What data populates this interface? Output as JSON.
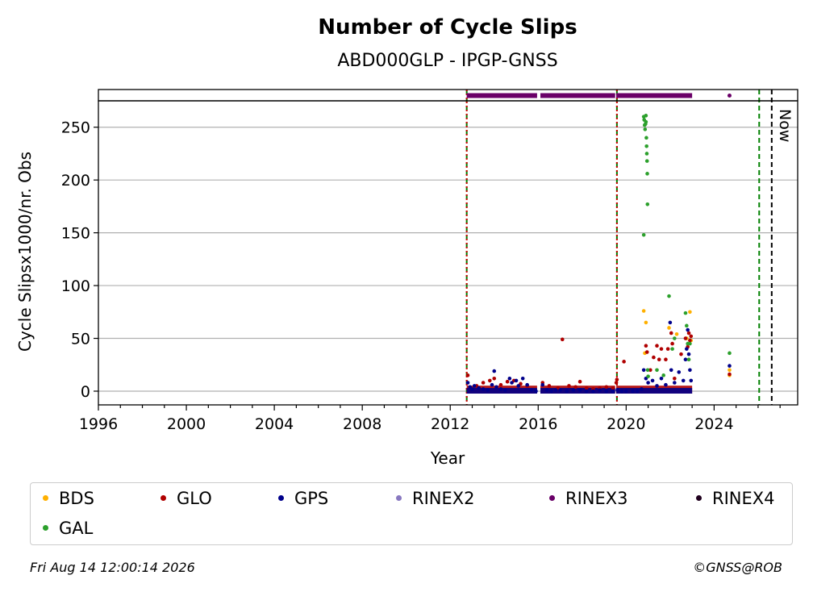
{
  "chart_data": {
    "type": "scatter",
    "title": "Number of Cycle Slips",
    "subtitle": "ABD000GLP - IPGP-GNSS",
    "xlabel": "Year",
    "ylabel": "Cycle Slipsx1000/nr. Obs",
    "xlim": [
      1996,
      2027.8
    ],
    "ylim": [
      -13,
      275
    ],
    "x_ticks": [
      1996,
      2000,
      2004,
      2008,
      2012,
      2016,
      2020,
      2024
    ],
    "y_ticks": [
      0,
      50,
      100,
      150,
      200,
      250
    ],
    "grid": "y",
    "now_label": "Now",
    "vlines": [
      {
        "x": 2012.75,
        "color": "#008000",
        "style": "dashed"
      },
      {
        "x": 2012.75,
        "color": "#cc0000",
        "style": "dotted"
      },
      {
        "x": 2019.58,
        "color": "#008000",
        "style": "dashed"
      },
      {
        "x": 2019.58,
        "color": "#cc0000",
        "style": "dotted"
      },
      {
        "x": 2026.05,
        "color": "#008000",
        "style": "dashed"
      },
      {
        "x": 2026.62,
        "color": "#000000",
        "style": "dashed"
      }
    ],
    "rinex3_bar": {
      "segments": [
        [
          2012.75,
          2015.95
        ],
        [
          2016.1,
          2019.5
        ],
        [
          2019.55,
          2023.0
        ]
      ],
      "points": [
        2024.7
      ]
    },
    "series": [
      {
        "name": "BDS",
        "color": "#ffb000",
        "x": [
          2020.8,
          2020.9,
          2020.85,
          2021.95,
          2022.3,
          2022.75,
          2022.9,
          2022.95,
          2024.7,
          2024.7
        ],
        "y": [
          76,
          65,
          36,
          60,
          54,
          50,
          75,
          48,
          20,
          15
        ]
      },
      {
        "name": "GLO",
        "color": "#b00000",
        "x": [
          2012.8,
          2013.2,
          2013.5,
          2013.8,
          2014.0,
          2014.3,
          2014.6,
          2014.9,
          2015.2,
          2015.5,
          2016.2,
          2016.5,
          2016.9,
          2017.1,
          2017.4,
          2017.7,
          2017.9,
          2018.2,
          2018.5,
          2018.8,
          2019.1,
          2019.4,
          2019.55,
          2019.58,
          2019.9,
          2020.9,
          2020.95,
          2021.1,
          2021.25,
          2021.4,
          2021.5,
          2021.6,
          2021.8,
          2021.9,
          2022.05,
          2022.1,
          2022.2,
          2022.5,
          2022.7,
          2022.8,
          2022.85,
          2022.9,
          2022.95,
          2024.7
        ],
        "y": [
          15,
          5,
          8,
          10,
          12,
          6,
          9,
          10,
          7,
          5,
          8,
          5,
          3,
          49,
          5,
          4,
          9,
          3,
          2,
          3,
          4,
          3,
          8,
          11,
          28,
          43,
          37,
          20,
          32,
          43,
          30,
          40,
          30,
          40,
          55,
          45,
          12,
          35,
          50,
          42,
          55,
          48,
          52,
          16
        ]
      },
      {
        "name": "GPS",
        "color": "#00008b",
        "x": [
          2012.8,
          2012.9,
          2013.0,
          2013.1,
          2013.3,
          2013.5,
          2013.7,
          2013.9,
          2014.0,
          2014.1,
          2014.3,
          2014.5,
          2014.7,
          2014.8,
          2015.0,
          2015.1,
          2015.3,
          2015.5,
          2015.7,
          2015.9,
          2016.2,
          2016.4,
          2016.6,
          2016.8,
          2017.0,
          2017.3,
          2017.6,
          2017.9,
          2018.2,
          2018.5,
          2018.8,
          2019.1,
          2019.4,
          2019.6,
          2019.8,
          2020.0,
          2020.3,
          2020.5,
          2020.7,
          2020.8,
          2020.9,
          2021.0,
          2021.2,
          2021.4,
          2021.6,
          2021.8,
          2022.0,
          2022.05,
          2022.2,
          2022.4,
          2022.6,
          2022.7,
          2022.75,
          2022.8,
          2022.85,
          2022.9,
          2022.95,
          2024.7
        ],
        "y": [
          8,
          4,
          2,
          5,
          3,
          2,
          1,
          6,
          19,
          4,
          2,
          1,
          12,
          8,
          10,
          5,
          12,
          6,
          1,
          0,
          6,
          1,
          0,
          1,
          1,
          0,
          1,
          1,
          0,
          0,
          1,
          0,
          0,
          1,
          0,
          0,
          0,
          0,
          2,
          20,
          12,
          8,
          10,
          5,
          12,
          6,
          65,
          20,
          8,
          18,
          10,
          30,
          40,
          58,
          35,
          20,
          10,
          24
        ]
      },
      {
        "name": "RINEX2",
        "color": "#8878c0",
        "x": [],
        "y": []
      },
      {
        "name": "RINEX3",
        "color": "#6a0068",
        "x": [],
        "y": []
      },
      {
        "name": "RINEX4",
        "color": "#20001e",
        "x": [],
        "y": []
      },
      {
        "name": "GAL",
        "color": "#2ca02c",
        "x": [
          2020.8,
          2020.8,
          2020.82,
          2020.84,
          2020.86,
          2020.88,
          2020.9,
          2020.9,
          2020.92,
          2020.93,
          2020.94,
          2020.95,
          2020.96,
          2020.97,
          2020.98,
          2021.0,
          2021.4,
          2021.7,
          2021.95,
          2022.1,
          2022.2,
          2022.7,
          2022.75,
          2022.8,
          2022.85,
          2022.9,
          2024.7
        ],
        "y": [
          148,
          260,
          257,
          252,
          248,
          253,
          261,
          255,
          240,
          232,
          225,
          218,
          206,
          177,
          20,
          14,
          20,
          15,
          90,
          40,
          50,
          74,
          62,
          45,
          30,
          45,
          36
        ]
      }
    ]
  },
  "legend": {
    "items": [
      {
        "label": "BDS",
        "color": "#ffb000"
      },
      {
        "label": "GLO",
        "color": "#b00000"
      },
      {
        "label": "GPS",
        "color": "#00008b"
      },
      {
        "label": "RINEX2",
        "color": "#8878c0"
      },
      {
        "label": "RINEX3",
        "color": "#6a0068"
      },
      {
        "label": "RINEX4",
        "color": "#20001e"
      },
      {
        "label": "GAL",
        "color": "#2ca02c"
      }
    ]
  },
  "footer": {
    "timestamp": "Fri Aug 14 12:00:14 2026",
    "credit": "©GNSS@ROB"
  }
}
